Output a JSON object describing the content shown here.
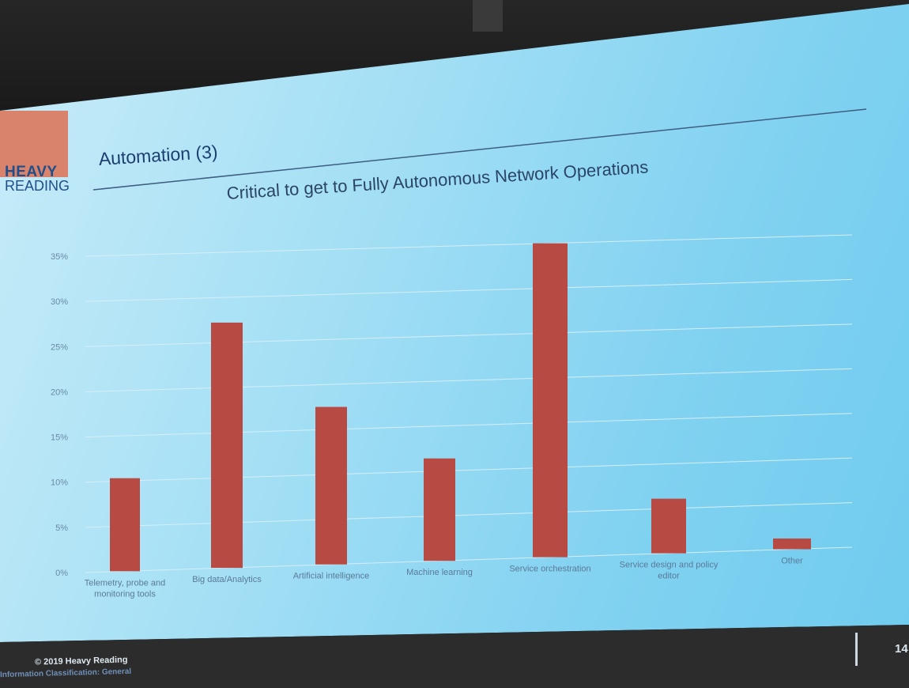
{
  "slide": {
    "logo_line1": "HEAVY",
    "logo_line2": "READING",
    "title": "Automation (3)",
    "copyright": "© 2019 Heavy Reading",
    "classification": "Information Classification: General",
    "page_number": "14"
  },
  "colors": {
    "bar": "#b84a44",
    "logo_block": "#d9826c",
    "title": "#1c3f70"
  },
  "chart_data": {
    "type": "bar",
    "title": "Critical to get to Fully Autonomous Network Operations",
    "xlabel": "",
    "ylabel": "",
    "categories": [
      "Telemetry, probe and monitoring tools",
      "Big data/Analytics",
      "Artificial intelligence",
      "Machine learning",
      "Service orchestration",
      "Service design and policy editor",
      "Other"
    ],
    "values": [
      10.3,
      27.2,
      17.5,
      11.4,
      35.0,
      6.1,
      1.2
    ],
    "ylim": [
      0,
      35
    ],
    "yticks": [
      "0%",
      "5%",
      "10%",
      "15%",
      "20%",
      "25%",
      "30%",
      "35%"
    ],
    "grid": true
  }
}
